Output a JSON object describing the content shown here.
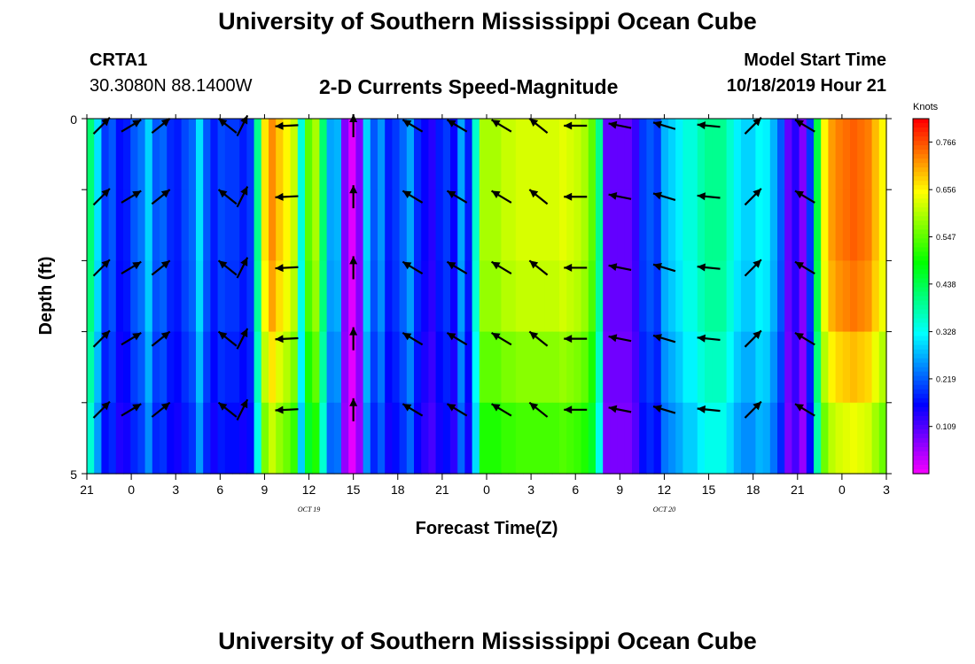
{
  "header": {
    "title": "University of Southern Mississippi Ocean Cube",
    "station_id": "CRTA1",
    "station_coords": "30.3080N 88.1400W",
    "subtitle": "2-D Currents Speed-Magnitude",
    "model_start_label": "Model Start Time",
    "model_start_value": "10/18/2019 Hour 21"
  },
  "footer": {
    "title": "University of Southern Mississippi Ocean Cube"
  },
  "chart_data": {
    "type": "heatmap",
    "title": "2-D Currents Speed-Magnitude",
    "xlabel": "Forecast Time(Z)",
    "ylabel": "Depth (ft)",
    "ylim": [
      0,
      5
    ],
    "y_ticks": [
      "0",
      "5"
    ],
    "x_tick_labels": [
      "21",
      "0",
      "3",
      "6",
      "9",
      "12",
      "15",
      "18",
      "21",
      "0",
      "3",
      "6",
      "9",
      "12",
      "15",
      "18",
      "21",
      "0",
      "3"
    ],
    "date_labels": [
      {
        "text": "OCT 19",
        "at_tick": 5
      },
      {
        "text": "OCT 20",
        "at_tick": 13
      }
    ],
    "colorbar": {
      "label": "Knots",
      "ticks": [
        "0.766",
        "0.656",
        "0.547",
        "0.438",
        "0.328",
        "0.219",
        "0.109"
      ],
      "range": [
        0.0,
        0.82
      ]
    },
    "hours": 54,
    "depth_rows": 5,
    "speed_columns": [
      0.42,
      0.31,
      0.2,
      0.22,
      0.17,
      0.18,
      0.22,
      0.24,
      0.3,
      0.22,
      0.23,
      0.19,
      0.18,
      0.21,
      0.23,
      0.31,
      0.22,
      0.18,
      0.21,
      0.2,
      0.2,
      0.18,
      0.2,
      0.4,
      0.67,
      0.73,
      0.69,
      0.66,
      0.62,
      0.35,
      0.55,
      0.6,
      0.42,
      0.27,
      0.28,
      0.08,
      0.02,
      0.08,
      0.3,
      0.22,
      0.26,
      0.18,
      0.2,
      0.23,
      0.27,
      0.19,
      0.16,
      0.14,
      0.18,
      0.2,
      0.16,
      0.27,
      0.18,
      0.36,
      0.6,
      0.6,
      0.6,
      0.62,
      0.62,
      0.63,
      0.63,
      0.63,
      0.63,
      0.63,
      0.63,
      0.64,
      0.63,
      0.62,
      0.6,
      0.55,
      0.4,
      0.1,
      0.1,
      0.1,
      0.1,
      0.13,
      0.2,
      0.22,
      0.2,
      0.28,
      0.3,
      0.32,
      0.35,
      0.35,
      0.38,
      0.4,
      0.4,
      0.4,
      0.36,
      0.32,
      0.3,
      0.3,
      0.33,
      0.32,
      0.28,
      0.22,
      0.1,
      0.14,
      0.08,
      0.2,
      0.45,
      0.66,
      0.72,
      0.74,
      0.75,
      0.76,
      0.75,
      0.74,
      0.7,
      0.66
    ],
    "depth_factor": [
      1.0,
      1.0,
      0.98,
      0.92,
      0.85
    ],
    "arrows": [
      {
        "time": 1,
        "dx": 1.0,
        "dy": -1.0
      },
      {
        "time": 3,
        "dx": 1.0,
        "dy": -0.6
      },
      {
        "time": 5,
        "dx": 1.0,
        "dy": -0.8
      },
      {
        "time": 9.5,
        "dx": -1.0,
        "dy": -0.8
      },
      {
        "time": 10.5,
        "dx": 0.5,
        "dy": -1.0
      },
      {
        "time": 13.5,
        "dx": -1.0,
        "dy": 0.05
      },
      {
        "time": 18,
        "dx": 0.0,
        "dy": -1.0
      },
      {
        "time": 22,
        "dx": -1.0,
        "dy": -0.6
      },
      {
        "time": 25,
        "dx": -1.0,
        "dy": -0.6
      },
      {
        "time": 28,
        "dx": -1.0,
        "dy": -0.6
      },
      {
        "time": 30.5,
        "dx": -1.0,
        "dy": -0.8
      },
      {
        "time": 33,
        "dx": -1.0,
        "dy": 0.0
      },
      {
        "time": 36,
        "dx": -1.0,
        "dy": -0.2
      },
      {
        "time": 39,
        "dx": -1.0,
        "dy": -0.3
      },
      {
        "time": 42,
        "dx": -1.0,
        "dy": -0.1
      },
      {
        "time": 45,
        "dx": 1.0,
        "dy": -1.0
      },
      {
        "time": 48.5,
        "dx": -1.0,
        "dy": -0.6
      }
    ]
  },
  "colors": {
    "frame": "#000000",
    "arrow": "#000000",
    "background": "#ffffff"
  }
}
